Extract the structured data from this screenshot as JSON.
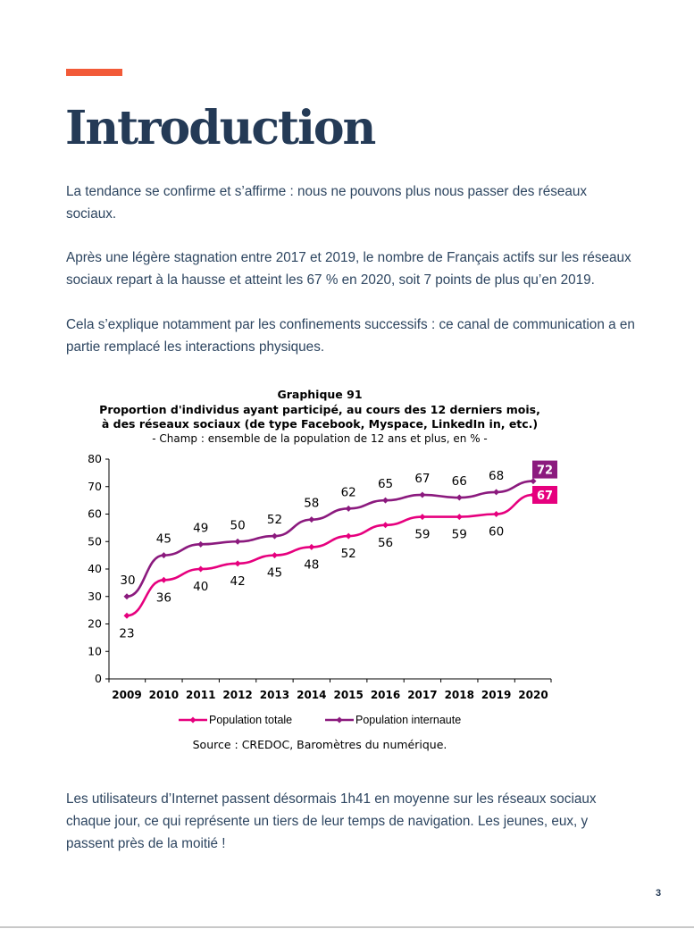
{
  "header": {
    "title": "Introduction"
  },
  "body": {
    "p1": "La tendance se confirme et s’affirme : nous ne pouvons plus nous passer des réseaux sociaux.",
    "p2": "Après une légère stagnation entre 2017 et 2019, le nombre de Français actifs sur les réseaux sociaux repart à la hausse et atteint les 67 % en 2020, soit 7 points de plus qu’en 2019.",
    "p3": "Cela s’explique notamment par les confinements successifs : ce canal de communication a en partie remplacé les interactions physiques.",
    "p4": "Les utilisateurs d’Internet passent désormais 1h41 en moyenne sur les réseaux sociaux chaque jour, ce qui représente un tiers de leur temps de navigation. Les jeunes, eux, y passent près de la moitié !"
  },
  "chart_data": {
    "type": "line",
    "title_lines": [
      "Graphique 91",
      "Proportion d'individus ayant participé, au cours des 12 derniers mois,",
      "à des réseaux sociaux (de type Facebook, Myspace, LinkedIn in, etc.)"
    ],
    "subtitle": "- Champ : ensemble de la population de 12 ans et plus, en % -",
    "x": [
      "2009",
      "2010",
      "2011",
      "2012",
      "2013",
      "2014",
      "2015",
      "2016",
      "2017",
      "2018",
      "2019",
      "2020"
    ],
    "ylim": [
      0,
      80
    ],
    "yticks": [
      0,
      10,
      20,
      30,
      40,
      50,
      60,
      70,
      80
    ],
    "series": [
      {
        "name": "Population totale",
        "color": "#e6007e",
        "values": [
          23,
          36,
          40,
          42,
          45,
          48,
          52,
          56,
          59,
          59,
          60,
          67
        ],
        "label_position": "below"
      },
      {
        "name": "Population internaute",
        "color": "#8b1a7e",
        "values": [
          30,
          45,
          49,
          50,
          52,
          58,
          62,
          65,
          67,
          66,
          68,
          72
        ],
        "label_position": "above"
      }
    ],
    "legend_position": "bottom",
    "source": "Source : CREDOC, Baromètres du numérique."
  },
  "footer": {
    "page_number": "3"
  }
}
